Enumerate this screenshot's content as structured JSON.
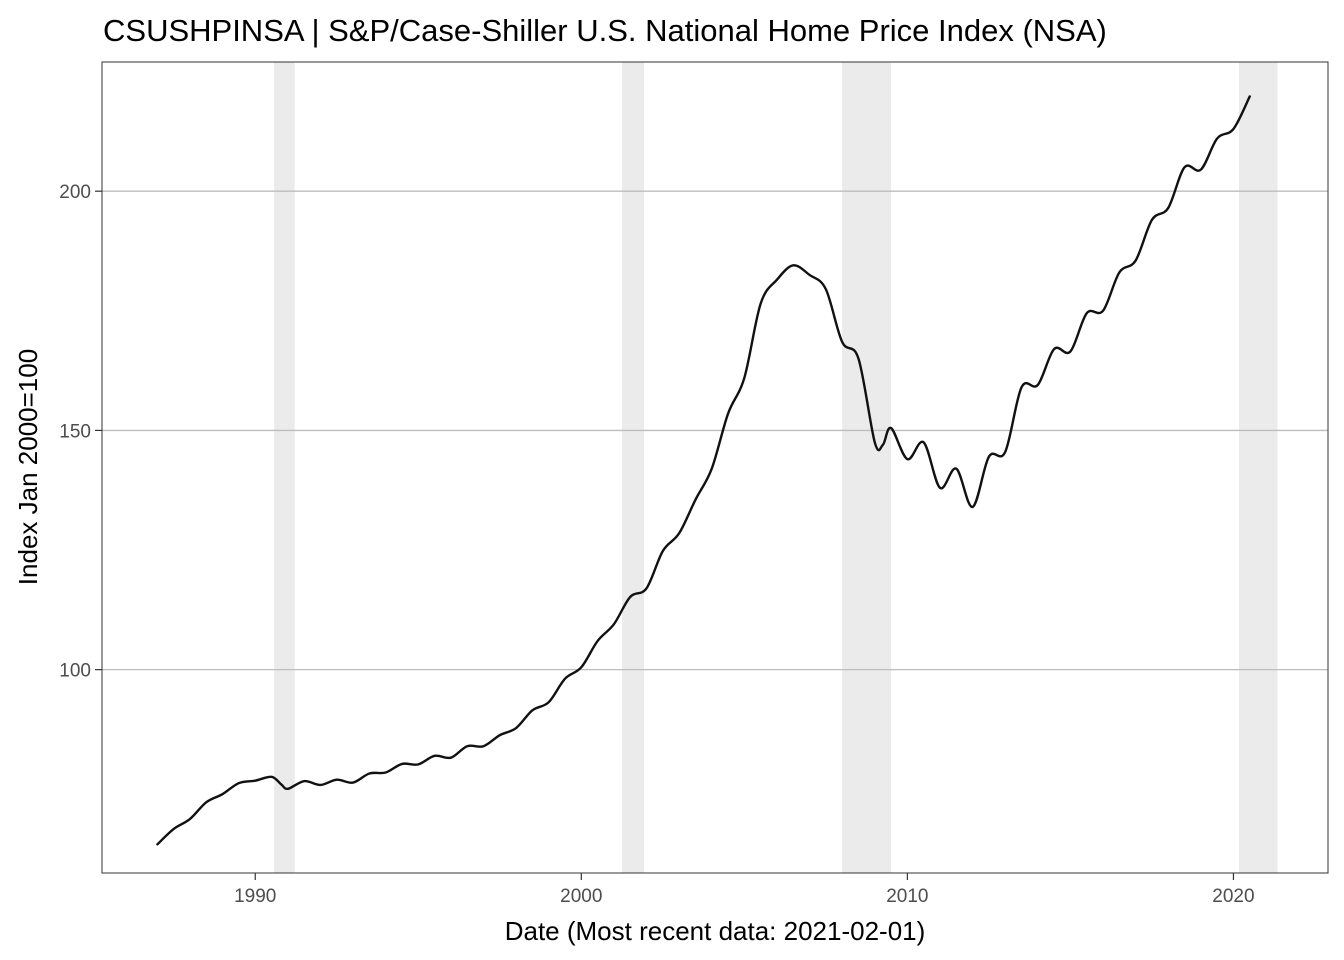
{
  "chart_data": {
    "type": "line",
    "title": "CSUSHPINSA | S&P/Case-Shiller U.S. National Home Price Index (NSA)",
    "xlabel": "Date (Most recent data: 2021-02-01)",
    "ylabel": "Index Jan 2000=100",
    "xlim": [
      1985.3,
      2022.9
    ],
    "ylim": [
      57.5,
      227
    ],
    "x_ticks": [
      1990,
      2000,
      2010,
      2020
    ],
    "x_tick_labels": [
      "1990",
      "2000",
      "2010",
      "2020"
    ],
    "y_ticks": [
      100,
      150,
      200
    ],
    "y_tick_labels": [
      "100",
      "150",
      "200"
    ],
    "grid": true,
    "legend": "none",
    "colors": {
      "line": "#111111",
      "recession": "#ebebeb",
      "grid": "#bdbdbd",
      "border": "#333333"
    },
    "recessions": [
      {
        "start": 1990.58,
        "end": 1991.21
      },
      {
        "start": 2001.25,
        "end": 2001.92
      },
      {
        "start": 2008.0,
        "end": 2009.5
      },
      {
        "start": 2020.17,
        "end": 2021.35
      }
    ],
    "series": [
      {
        "x": [
          1987.0,
          1987.5,
          1988.0,
          1988.5,
          1989.0,
          1989.5,
          1990.0,
          1990.5,
          1990.8,
          1991.0,
          1991.5,
          1992.0,
          1992.5,
          1993.0,
          1993.5,
          1994.0,
          1994.5,
          1995.0,
          1995.5,
          1996.0,
          1996.5,
          1997.0,
          1997.5,
          1998.0,
          1998.5,
          1999.0,
          1999.5,
          2000.0,
          2000.5,
          2001.0,
          2001.5,
          2002.0,
          2002.5,
          2003.0,
          2003.5,
          2004.0,
          2004.5,
          2005.0,
          2005.5,
          2006.0,
          2006.5,
          2007.0,
          2007.5,
          2008.0,
          2008.5,
          2009.0,
          2009.25,
          2009.5,
          2010.0,
          2010.5,
          2011.0,
          2011.5,
          2012.0,
          2012.5,
          2013.0,
          2013.5,
          2014.0,
          2014.5,
          2015.0,
          2015.5,
          2016.0,
          2016.5,
          2017.0,
          2017.5,
          2018.0,
          2018.5,
          2019.0,
          2019.5,
          2020.0,
          2020.5
        ],
        "y": [
          63.5,
          66.7,
          68.8,
          72.3,
          74.0,
          76.3,
          76.8,
          77.6,
          76.0,
          75.1,
          76.7,
          75.9,
          77.0,
          76.4,
          78.3,
          78.5,
          80.3,
          80.2,
          82.0,
          81.6,
          84.0,
          84.0,
          86.3,
          87.8,
          91.5,
          93.2,
          98.1,
          100.5,
          106.0,
          109.5,
          115.2,
          117.0,
          124.8,
          128.5,
          135.5,
          142.0,
          153.5,
          161.0,
          176.5,
          181.5,
          184.5,
          182.5,
          179.5,
          168.5,
          165.0,
          147.5,
          147.0,
          150.5,
          144.0,
          147.5,
          138.0,
          142.0,
          134.0,
          144.5,
          145.5,
          159.0,
          159.5,
          167.0,
          166.5,
          174.5,
          175.0,
          183.0,
          185.5,
          194.0,
          196.5,
          205.0,
          204.5,
          211.0,
          213.0,
          219.8
        ]
      }
    ]
  }
}
